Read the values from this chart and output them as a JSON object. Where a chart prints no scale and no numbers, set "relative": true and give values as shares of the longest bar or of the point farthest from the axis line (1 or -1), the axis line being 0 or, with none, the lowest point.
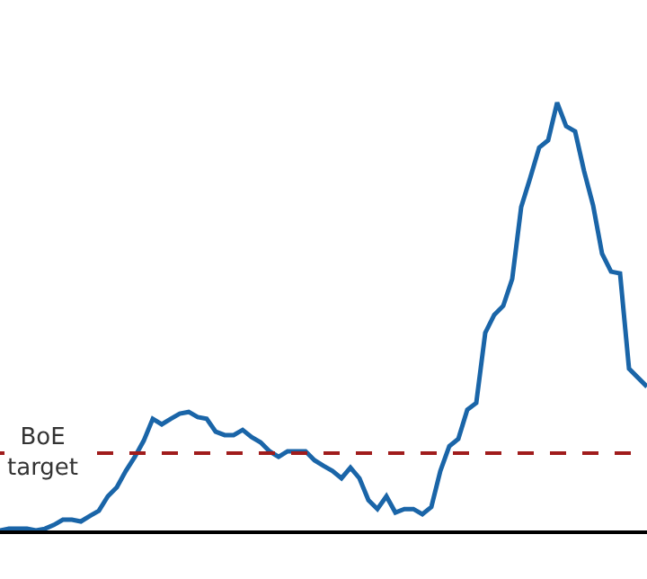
{
  "chart_data": {
    "type": "line",
    "relative": true,
    "categories": [
      null,
      null,
      null,
      null,
      null,
      null,
      null,
      null,
      null,
      null,
      null,
      null,
      null,
      null,
      null,
      null,
      null,
      null,
      null,
      null,
      null,
      null,
      null,
      null,
      null,
      null,
      null,
      null,
      null,
      null,
      null,
      null,
      null,
      null,
      null,
      null,
      null,
      null,
      null,
      null,
      null,
      null,
      null,
      null,
      null,
      null,
      null,
      null,
      null,
      null,
      null,
      null,
      null,
      null,
      null,
      null,
      null,
      null,
      null,
      null,
      null,
      null,
      null,
      null,
      null,
      null,
      null,
      null,
      null,
      null,
      null,
      null,
      null
    ],
    "series": [
      {
        "color": "#1a65a8",
        "values": [
          0,
          0.004,
          0.004,
          0.004,
          0,
          0.004,
          0.013,
          0.025,
          0.025,
          0.021,
          0.034,
          0.046,
          0.08,
          0.101,
          0.139,
          0.172,
          0.21,
          0.261,
          0.248,
          0.261,
          0.273,
          0.277,
          0.265,
          0.261,
          0.231,
          0.223,
          0.223,
          0.235,
          0.218,
          0.206,
          0.185,
          0.172,
          0.185,
          0.185,
          0.185,
          0.164,
          0.151,
          0.139,
          0.122,
          0.147,
          0.122,
          0.071,
          0.05,
          0.08,
          0.042,
          0.05,
          0.05,
          0.038,
          0.055,
          0.139,
          0.197,
          0.214,
          0.282,
          0.298,
          0.462,
          0.504,
          0.525,
          0.588,
          0.756,
          0.824,
          0.895,
          0.912,
          1,
          0.945,
          0.933,
          0.84,
          0.76,
          0.647,
          0.605,
          0.601,
          0.378,
          0.357,
          0.336
        ]
      }
    ],
    "ref_lines": [
      {
        "axis": "y",
        "value": 0.181,
        "label": "BoE\ntarget",
        "color": "#a01c1c",
        "line_style": "dashed"
      }
    ],
    "marker": "none",
    "line_style": "solid",
    "legend": false
  }
}
